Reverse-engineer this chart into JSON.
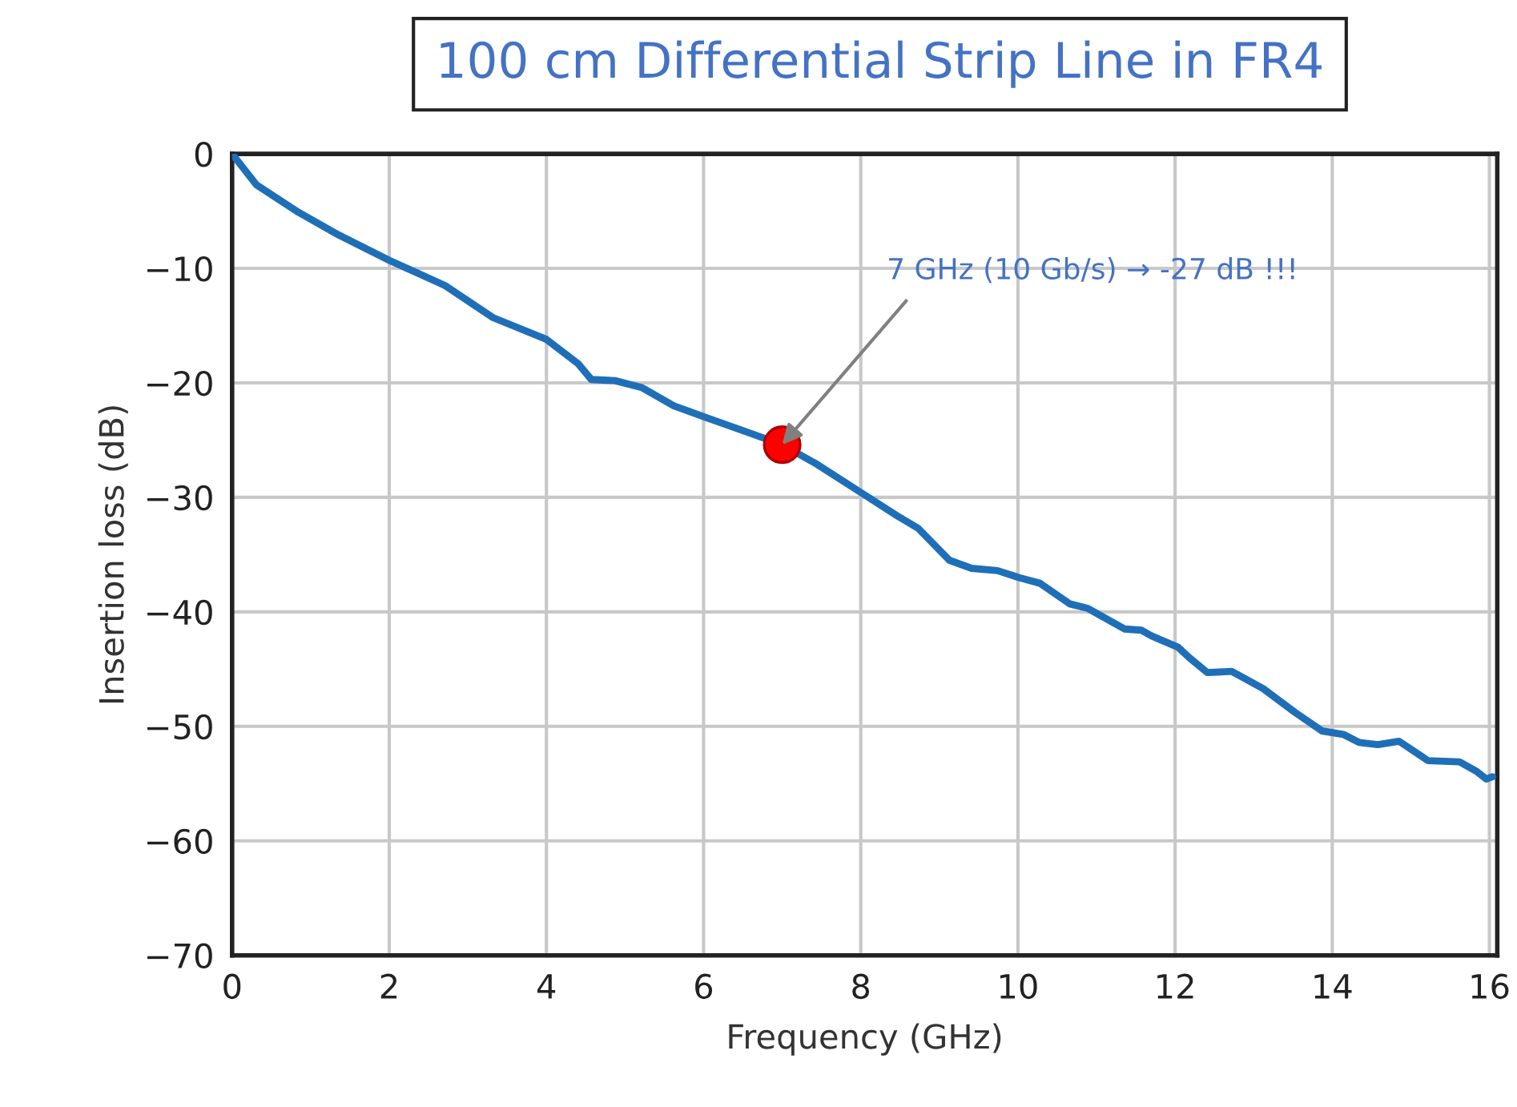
{
  "chart_data": {
    "type": "line",
    "title": "100 cm Differential Strip Line in FR4",
    "xlabel": "Frequency (GHz)",
    "ylabel": "Insertion loss (dB)",
    "xlim": [
      0,
      16.1
    ],
    "ylim": [
      -70,
      0
    ],
    "xticks": [
      0,
      2,
      4,
      6,
      8,
      10,
      12,
      14,
      16
    ],
    "yticks": [
      -70,
      -60,
      -50,
      -40,
      -30,
      -20,
      -10,
      0
    ],
    "grid": true,
    "marker": "none",
    "line_style": "solid",
    "series": [
      {
        "color": "#1f6fb8",
        "x": [
          0,
          0.31,
          0.82,
          1.36,
          2.0,
          2.71,
          3.32,
          4.0,
          4.4,
          4.57,
          4.87,
          5.21,
          5.62,
          6.02,
          6.43,
          7.0,
          7.44,
          8.03,
          8.46,
          8.73,
          9.13,
          9.41,
          9.74,
          10.01,
          10.28,
          10.66,
          10.89,
          11.36,
          11.57,
          11.7,
          12.04,
          12.18,
          12.41,
          12.72,
          13.12,
          13.53,
          13.87,
          14.14,
          14.34,
          14.58,
          14.85,
          15.22,
          15.62,
          15.83,
          15.96,
          16.04
        ],
        "values": [
          0,
          -2.7,
          -5.0,
          -7.1,
          -9.3,
          -11.5,
          -14.3,
          -16.2,
          -18.3,
          -19.7,
          -19.8,
          -20.4,
          -22.0,
          -23.0,
          -24.0,
          -25.4,
          -27.1,
          -29.7,
          -31.6,
          -32.7,
          -35.5,
          -36.2,
          -36.4,
          -37.0,
          -37.5,
          -39.3,
          -39.7,
          -41.5,
          -41.6,
          -42.1,
          -43.1,
          -44.0,
          -45.3,
          -45.2,
          -46.7,
          -48.8,
          -50.4,
          -50.7,
          -51.4,
          -51.6,
          -51.3,
          -53.0,
          -53.1,
          -53.9,
          -54.6,
          -54.4
        ]
      },
      {
        "type": "scatter",
        "color": "#ff0000",
        "marker": "circle",
        "x": [
          7.0
        ],
        "values": [
          -25.4
        ]
      }
    ],
    "annotations": [
      {
        "text": "7 GHz (10 Gb/s) → -27 dB !!!",
        "x": 7.0,
        "y": -25.4
      }
    ]
  }
}
